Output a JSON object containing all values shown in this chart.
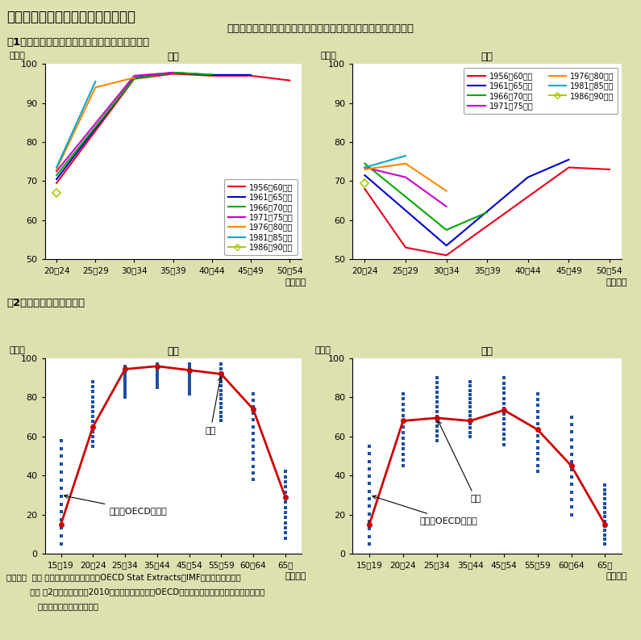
{
  "bg_color": "#dfe0b0",
  "title": "第１－１－２５図　労働力率の動向",
  "subtitle": "若年男性の労働力率は低下傾向だが、女性の労働力率は上昇傾向",
  "section1_title": "（1）男女別・年齢階層別変化のコーホート分析",
  "section2_title": "（2）労働力率の国際比較",
  "cohort_age_labels": [
    "20～24",
    "25～29",
    "30～34",
    "35～39",
    "40～44",
    "45～49",
    "50～54"
  ],
  "cohort_colors": {
    "1956-60": "#e8001c",
    "1961-65": "#0000cc",
    "1966-70": "#00aa00",
    "1971-75": "#cc00cc",
    "1976-80": "#ff8800",
    "1981-85": "#00aacc",
    "1986-90": "#aacc00"
  },
  "male_cohort_data": {
    "1956-60": [
      69.5,
      null,
      96.2,
      97.5,
      97.0,
      97.0,
      95.8
    ],
    "1961-65": [
      70.5,
      null,
      96.5,
      97.8,
      97.2,
      97.2,
      null
    ],
    "1966-70": [
      71.5,
      null,
      96.3,
      97.8,
      97.3,
      null,
      null
    ],
    "1971-75": [
      72.5,
      null,
      97.0,
      97.8,
      null,
      null,
      null
    ],
    "1976-80": [
      73.0,
      94.0,
      96.5,
      null,
      null,
      null,
      null
    ],
    "1981-85": [
      73.5,
      95.5,
      null,
      null,
      null,
      null,
      null
    ],
    "1986-90": [
      67.0,
      null,
      null,
      null,
      null,
      null,
      null
    ]
  },
  "female_cohort_data": {
    "1956-60": [
      68.0,
      53.0,
      51.0,
      null,
      null,
      73.5,
      73.0
    ],
    "1961-65": [
      71.5,
      null,
      53.5,
      null,
      71.0,
      75.5,
      null
    ],
    "1966-70": [
      74.5,
      null,
      57.5,
      62.0,
      null,
      null,
      null
    ],
    "1971-75": [
      73.5,
      71.0,
      63.5,
      null,
      null,
      null,
      null
    ],
    "1976-80": [
      73.0,
      74.5,
      67.5,
      null,
      null,
      null,
      null
    ],
    "1981-85": [
      73.5,
      76.5,
      null,
      null,
      null,
      null,
      null
    ],
    "1986-90": [
      69.5,
      null,
      null,
      null,
      null,
      null,
      null
    ]
  },
  "cohort_labels": {
    "1956-60": "1956～60年生",
    "1961-65": "1961～65年生",
    "1966-70": "1966～70年生",
    "1971-75": "1971～75年生",
    "1976-80": "1976～80年生",
    "1981-85": "1981～85年生",
    "1986-90": "1986～90年生"
  },
  "intl_age_labels": [
    "15～19",
    "20～24",
    "25～34",
    "35～44",
    "45～54",
    "55～59",
    "60～64",
    "65～"
  ],
  "japan_male": [
    15.0,
    65.0,
    94.5,
    96.0,
    94.0,
    92.0,
    74.0,
    29.0
  ],
  "japan_female": [
    15.0,
    68.0,
    69.5,
    68.0,
    73.5,
    63.5,
    45.0,
    15.0
  ],
  "oecd_male_ranges": [
    [
      5,
      58
    ],
    [
      55,
      88
    ],
    [
      80,
      96
    ],
    [
      85,
      97
    ],
    [
      82,
      97
    ],
    [
      68,
      97
    ],
    [
      38,
      82
    ],
    [
      8,
      42
    ]
  ],
  "oecd_female_ranges": [
    [
      5,
      55
    ],
    [
      45,
      82
    ],
    [
      58,
      90
    ],
    [
      60,
      88
    ],
    [
      56,
      90
    ],
    [
      42,
      82
    ],
    [
      20,
      70
    ],
    [
      5,
      35
    ]
  ],
  "oecd_color": "#1e4fa0",
  "japan_line_color": "#cc0000",
  "male_title": "男性",
  "female_title": "女性",
  "pct_label": "（％）",
  "age_label": "（年齢）",
  "annotation_japan": "日本",
  "annotation_oecd": "その他OECD加盟国",
  "footnote1": "（備考）  １． 总務省「労働力調査」、OECD Stat Extracts、IMF資料により作成。",
  "footnote2": "         ２． （2）の労働力率は2010年実績。日本以外のOECD加盟国については点でプロットした。",
  "footnote3": "            詳細は付表１－１を参照。"
}
